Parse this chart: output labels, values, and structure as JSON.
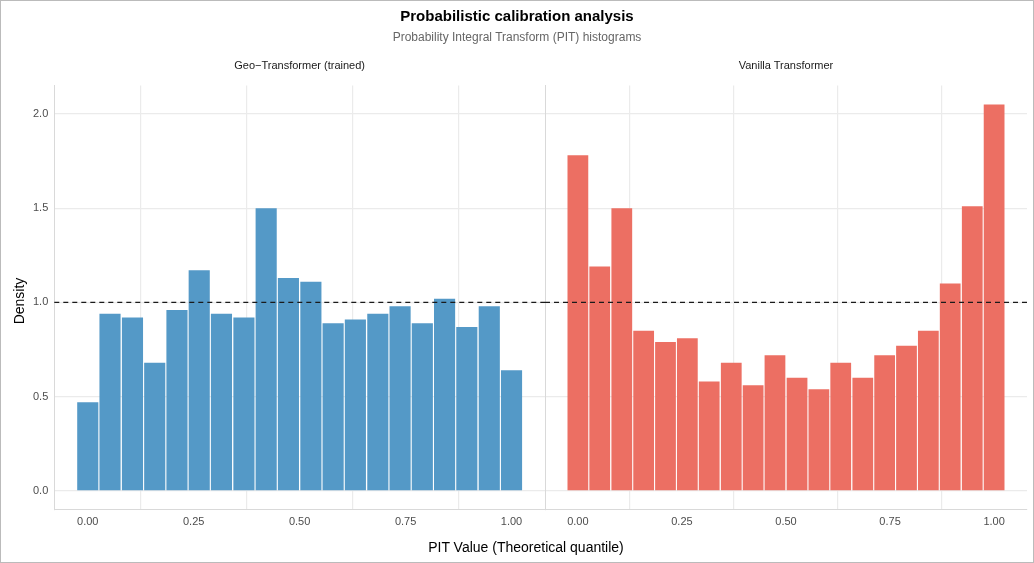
{
  "chart_data": [
    {
      "type": "histogram",
      "title": "Probabilistic calibration analysis",
      "subtitle": "Probability Integral Transform (PIT) histograms",
      "xlabel": "PIT Value (Theoretical quantile)",
      "ylabel": "Density",
      "bins": [
        -0.026,
        0.026,
        0.079,
        0.132,
        0.184,
        0.237,
        0.289,
        0.342,
        0.395,
        0.447,
        0.5,
        0.553,
        0.605,
        0.658,
        0.711,
        0.763,
        0.816,
        0.868,
        0.921,
        0.974,
        1.026
      ],
      "series": [
        {
          "name": "Geo−Transformer (trained)",
          "color": "#5499c7",
          "values": [
            0.47,
            0.94,
            0.92,
            0.68,
            0.96,
            1.17,
            0.94,
            0.92,
            1.5,
            1.13,
            1.11,
            0.89,
            0.91,
            0.94,
            0.98,
            0.89,
            1.02,
            0.87,
            0.98,
            0.64
          ]
        }
      ],
      "xlim": [
        -0.079,
        1.079
      ],
      "ylim": [
        -0.1,
        2.15
      ],
      "xticks": [
        {
          "value": 0,
          "label": "0.00"
        },
        {
          "value": 0.25,
          "label": "0.25"
        },
        {
          "value": 0.5,
          "label": "0.50"
        },
        {
          "value": 0.75,
          "label": "0.75"
        },
        {
          "value": 1,
          "label": "1.00"
        }
      ],
      "yticks": [
        {
          "value": 0,
          "label": "0.0"
        },
        {
          "value": 0.5,
          "label": "0.5"
        },
        {
          "value": 1,
          "label": "1.0"
        },
        {
          "value": 1.5,
          "label": "1.5"
        },
        {
          "value": 2,
          "label": "2.0"
        }
      ],
      "ref_lines": [
        {
          "axis": "y",
          "value": 1,
          "color": "#1a1a1a",
          "line_style": "dashed"
        }
      ],
      "grid": true
    },
    {
      "type": "histogram",
      "bins": [
        -0.026,
        0.026,
        0.079,
        0.132,
        0.184,
        0.237,
        0.289,
        0.342,
        0.395,
        0.447,
        0.5,
        0.553,
        0.605,
        0.658,
        0.711,
        0.763,
        0.816,
        0.868,
        0.921,
        0.974,
        1.026
      ],
      "series": [
        {
          "name": "Vanilla Transformer",
          "color": "#ec6f63",
          "values": [
            1.78,
            1.19,
            1.5,
            0.85,
            0.79,
            0.81,
            0.58,
            0.68,
            0.56,
            0.72,
            0.6,
            0.54,
            0.68,
            0.6,
            0.72,
            0.77,
            0.85,
            1.1,
            1.51,
            2.05
          ]
        }
      ],
      "xlim": [
        -0.079,
        1.079
      ],
      "ylim": [
        -0.1,
        2.15
      ],
      "xticks": [
        {
          "value": 0,
          "label": "0.00"
        },
        {
          "value": 0.25,
          "label": "0.25"
        },
        {
          "value": 0.5,
          "label": "0.50"
        },
        {
          "value": 0.75,
          "label": "0.75"
        },
        {
          "value": 1,
          "label": "1.00"
        }
      ],
      "yticks": [
        0,
        0.5,
        1,
        1.5,
        2
      ],
      "ref_lines": [
        {
          "axis": "y",
          "value": 1,
          "color": "#1a1a1a",
          "line_style": "dashed"
        }
      ],
      "grid": true,
      "tick_labels": "x"
    }
  ]
}
